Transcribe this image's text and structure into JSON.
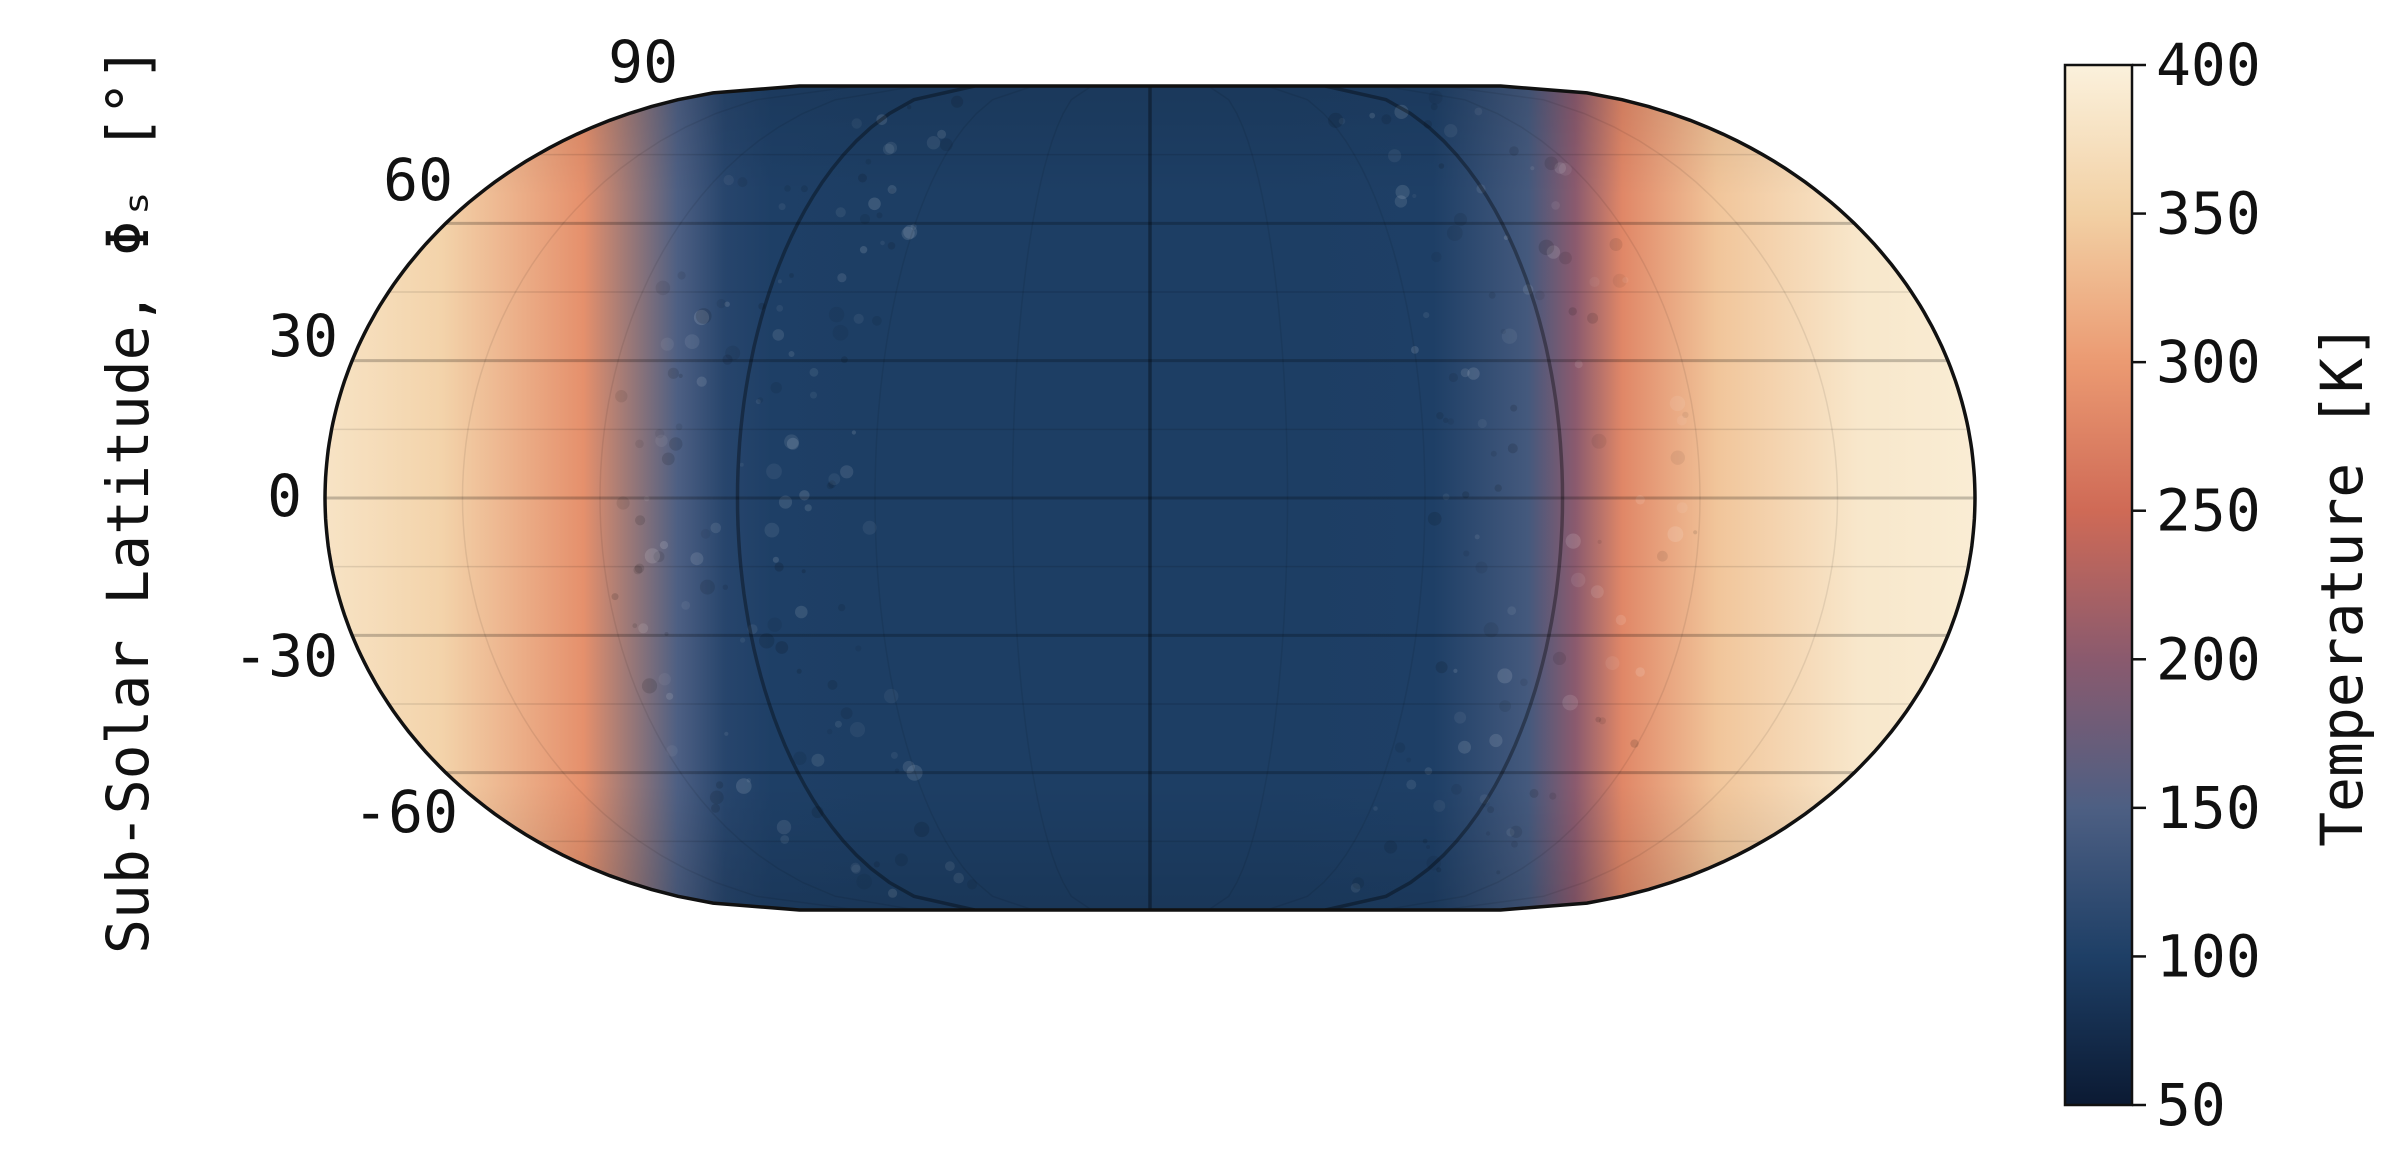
{
  "chart_data": {
    "type": "heatmap",
    "projection": "Eckert IV (global map)",
    "title": "",
    "ylabel": "Sub-Solar Latitude, Φₛ [°]",
    "latitude_ticks": [
      "90",
      "60",
      "30",
      "0",
      "-30",
      "-60"
    ],
    "colorbar": {
      "label": "Temperature [K]",
      "range": [
        50,
        400
      ],
      "ticks": [
        "400",
        "350",
        "300",
        "250",
        "200",
        "150",
        "100",
        "50"
      ],
      "colormap": [
        "#0b1a33",
        "#1e3f66",
        "#4d5f83",
        "#8a5a6e",
        "#cf6a56",
        "#eb9a72",
        "#f2d0a4",
        "#fbf1dc"
      ]
    },
    "temperature_profile": {
      "longitude_deg": [
        -180,
        -150,
        -120,
        -100,
        -90,
        -80,
        -60,
        -30,
        0,
        30,
        60,
        80,
        90,
        100,
        120,
        150,
        180
      ],
      "temperature_k": [
        385,
        355,
        290,
        150,
        110,
        100,
        98,
        98,
        98,
        98,
        100,
        140,
        200,
        280,
        340,
        385,
        395
      ]
    },
    "grid": true
  }
}
